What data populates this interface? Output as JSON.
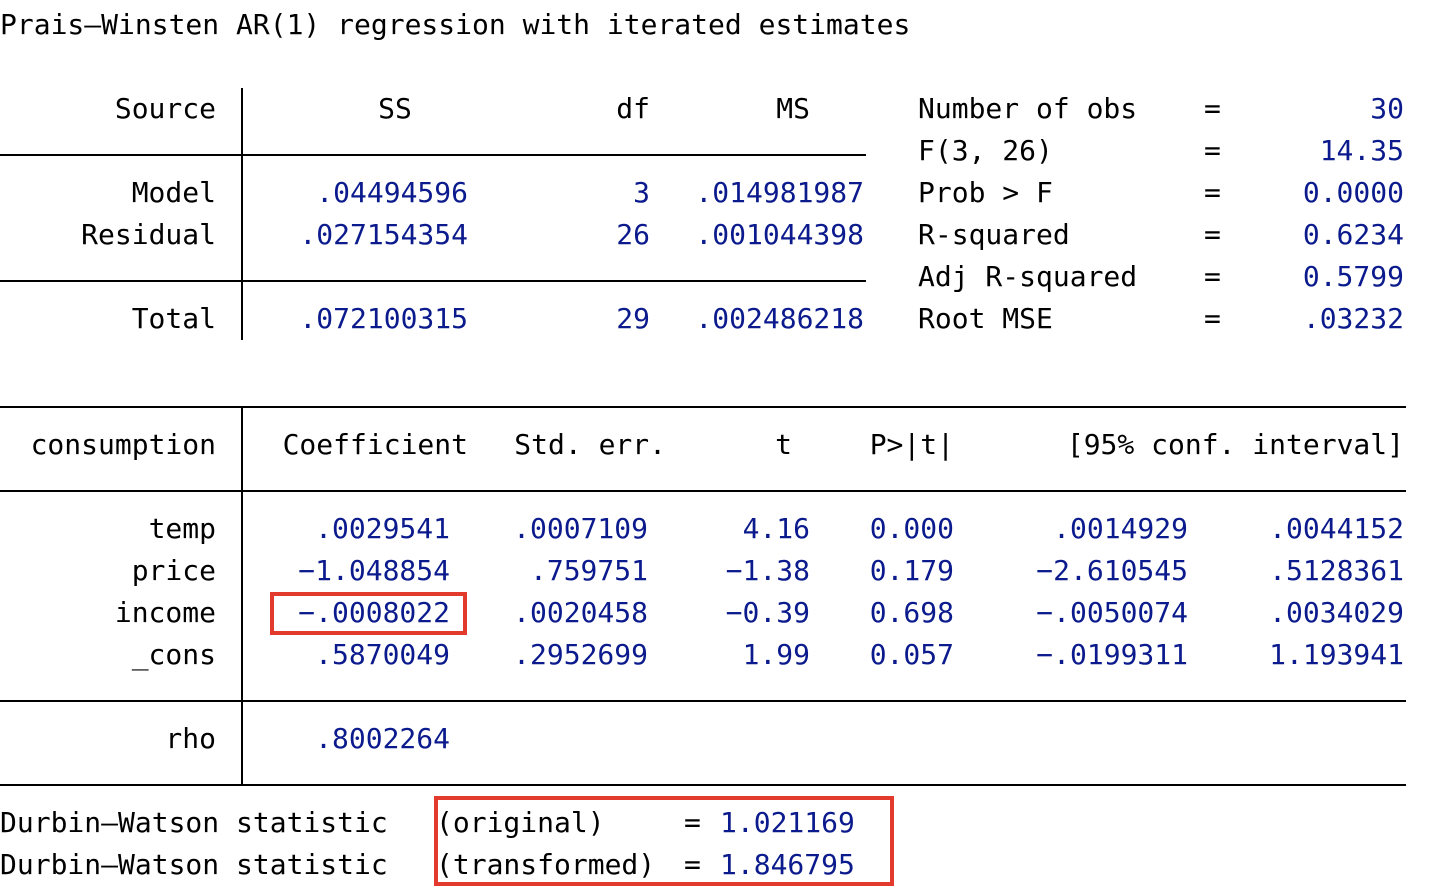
{
  "title": "Prais–Winsten AR(1) regression with iterated estimates",
  "anova": {
    "headers": {
      "source": "Source",
      "ss": "SS",
      "df": "df",
      "ms": "MS"
    },
    "rows": [
      {
        "source": "Model",
        "ss": ".04494596",
        "df": "3",
        "ms": ".014981987"
      },
      {
        "source": "Residual",
        "ss": ".027154354",
        "df": "26",
        "ms": ".001044398"
      }
    ],
    "total": {
      "source": "Total",
      "ss": ".072100315",
      "df": "29",
      "ms": ".002486218"
    }
  },
  "stats": [
    {
      "label": "Number of obs",
      "eq": "=",
      "value": "30"
    },
    {
      "label": "F(3, 26)",
      "eq": "=",
      "value": "14.35"
    },
    {
      "label": "Prob > F",
      "eq": "=",
      "value": "0.0000"
    },
    {
      "label": "R-squared",
      "eq": "=",
      "value": "0.6234"
    },
    {
      "label": "Adj R-squared",
      "eq": "=",
      "value": "0.5799"
    },
    {
      "label": "Root MSE",
      "eq": "=",
      "value": ".03232"
    }
  ],
  "coef": {
    "headers": {
      "var": "consumption",
      "coef": "Coefficient",
      "se": "Std. err.",
      "t": "t",
      "p": "P>|t|",
      "ci": "[95% conf. interval]"
    },
    "rows": [
      {
        "var": "temp",
        "coef": ".0029541",
        "se": ".0007109",
        "t": "4.16",
        "p": "0.000",
        "lo": ".0014929",
        "hi": ".0044152"
      },
      {
        "var": "price",
        "coef": "−1.048854",
        "se": ".759751",
        "t": "−1.38",
        "p": "0.179",
        "lo": "−2.610545",
        "hi": ".5128361"
      },
      {
        "var": "income",
        "coef": "−.0008022",
        "se": ".0020458",
        "t": "−0.39",
        "p": "0.698",
        "lo": "−.0050074",
        "hi": ".0034029"
      },
      {
        "var": "_cons",
        "coef": ".5870049",
        "se": ".2952699",
        "t": "1.99",
        "p": "0.057",
        "lo": "−.0199311",
        "hi": "1.193941"
      }
    ],
    "rho": {
      "label": "rho",
      "value": ".8002264"
    }
  },
  "durbin_watson": [
    {
      "label": "Durbin–Watson statistic",
      "qualifier": "(original)   ",
      "eq": "=",
      "value": "1.021169"
    },
    {
      "label": "Durbin–Watson statistic",
      "qualifier": "(transformed)",
      "eq": "=",
      "value": "1.846795"
    }
  ],
  "highlight_color": "#e23b2e",
  "number_color": "#0b1a8c"
}
